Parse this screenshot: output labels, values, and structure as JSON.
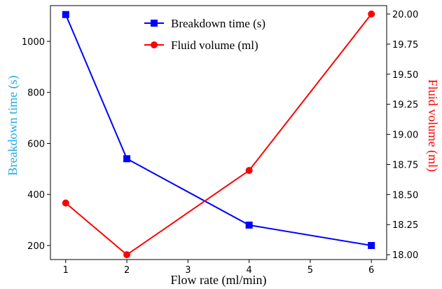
{
  "chart_data": {
    "type": "line",
    "x": [
      1,
      2,
      4,
      6
    ],
    "xlabel": "Flow rate (ml/min)",
    "xlim": [
      0.75,
      6.25
    ],
    "xticks": [
      "1",
      "2",
      "3",
      "4",
      "5",
      "6"
    ],
    "y_left": {
      "label": "Breakdown time (s)",
      "label_color": "#29a8e0",
      "lim": [
        145,
        1140
      ],
      "ticks": [
        "200",
        "400",
        "600",
        "800",
        "1000"
      ]
    },
    "y_right": {
      "label": "Fluid volume (ml)",
      "label_color": "#ff0000",
      "lim": [
        17.96,
        20.07
      ],
      "ticks": [
        "18.00",
        "18.25",
        "18.50",
        "18.75",
        "19.00",
        "19.25",
        "19.50",
        "19.75",
        "20.00"
      ]
    },
    "series": [
      {
        "name": "Breakdown time (s)",
        "axis": "left",
        "color": "#0000ff",
        "marker": "square",
        "values": [
          1105,
          540,
          280,
          200
        ]
      },
      {
        "name": "Fluid volume (ml)",
        "axis": "right",
        "color": "#ff0000",
        "marker": "circle",
        "values": [
          18.43,
          18.0,
          18.7,
          20.0
        ]
      }
    ],
    "legend_position": "top-center",
    "grid": false
  }
}
